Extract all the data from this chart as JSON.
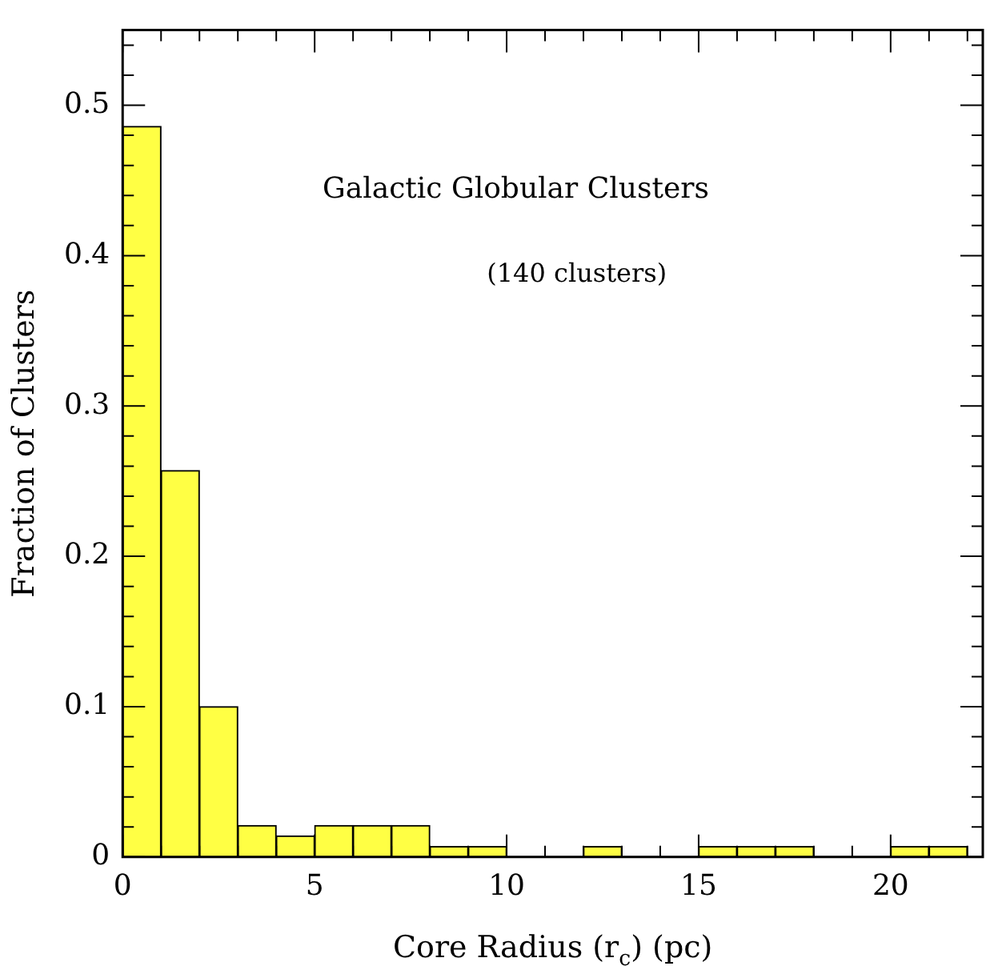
{
  "chart_data": {
    "type": "histogram",
    "title": "Galactic Globular Clusters",
    "annotations": [
      "(140 clusters)"
    ],
    "xlabel": "Core Radius (r$_{c}$) (pc)",
    "ylabel": "Fraction of Clusters",
    "bins": [
      0,
      1,
      2,
      3,
      4,
      5,
      6,
      7,
      8,
      9,
      10,
      11,
      12,
      13,
      14,
      15,
      16,
      17,
      18,
      19,
      20,
      21,
      22
    ],
    "values": [
      0.486,
      0.257,
      0.1,
      0.021,
      0.014,
      0.021,
      0.021,
      0.021,
      0.007,
      0.007,
      0,
      0,
      0.007,
      0,
      0,
      0.007,
      0.007,
      0.007,
      0,
      0,
      0.007,
      0.007
    ],
    "color": "#ffff44",
    "xlim": [
      0,
      22.4
    ],
    "ylim": [
      0,
      0.55
    ],
    "xticks": [
      0,
      {
        "value": 1,
        "label": null
      },
      {
        "value": 2,
        "label": null
      },
      {
        "value": 3,
        "label": null
      },
      {
        "value": 4,
        "label": null
      },
      5,
      {
        "value": 6,
        "label": null
      },
      {
        "value": 7,
        "label": null
      },
      {
        "value": 8,
        "label": null
      },
      {
        "value": 9,
        "label": null
      },
      10,
      {
        "value": 11,
        "label": null
      },
      {
        "value": 12,
        "label": null
      },
      {
        "value": 13,
        "label": null
      },
      {
        "value": 14,
        "label": null
      },
      15,
      {
        "value": 16,
        "label": null
      },
      {
        "value": 17,
        "label": null
      },
      {
        "value": 18,
        "label": null
      },
      {
        "value": 19,
        "label": null
      },
      20,
      {
        "value": 21,
        "label": null
      },
      {
        "value": 22,
        "label": null
      }
    ],
    "yticks": [
      0,
      {
        "value": 0.02,
        "label": null
      },
      {
        "value": 0.04,
        "label": null
      },
      {
        "value": 0.06,
        "label": null
      },
      {
        "value": 0.08,
        "label": null
      },
      0.1,
      {
        "value": 0.12,
        "label": null
      },
      {
        "value": 0.14,
        "label": null
      },
      {
        "value": 0.16,
        "label": null
      },
      {
        "value": 0.18,
        "label": null
      },
      0.2,
      {
        "value": 0.22,
        "label": null
      },
      {
        "value": 0.24,
        "label": null
      },
      {
        "value": 0.26,
        "label": null
      },
      {
        "value": 0.28,
        "label": null
      },
      0.3,
      {
        "value": 0.32,
        "label": null
      },
      {
        "value": 0.34,
        "label": null
      },
      {
        "value": 0.36,
        "label": null
      },
      {
        "value": 0.38,
        "label": null
      },
      0.4,
      {
        "value": 0.42,
        "label": null
      },
      {
        "value": 0.44,
        "label": null
      },
      {
        "value": 0.46,
        "label": null
      },
      {
        "value": 0.48,
        "label": null
      },
      0.5,
      {
        "value": 0.52,
        "label": null
      },
      {
        "value": 0.54,
        "label": null
      }
    ],
    "grid": false,
    "legend": false
  }
}
